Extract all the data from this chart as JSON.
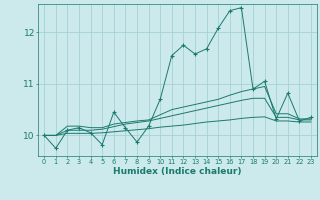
{
  "bg_color": "#cce9ec",
  "grid_color": "#9ecdd2",
  "line_color": "#1a7a6e",
  "xlabel": "Humidex (Indice chaleur)",
  "ylabel_ticks": [
    10,
    11,
    12
  ],
  "xlim": [
    -0.5,
    23.5
  ],
  "ylim": [
    9.6,
    12.55
  ],
  "xticks": [
    0,
    1,
    2,
    3,
    4,
    5,
    6,
    7,
    8,
    9,
    10,
    11,
    12,
    13,
    14,
    15,
    16,
    17,
    18,
    19,
    20,
    21,
    22,
    23
  ],
  "x": [
    0,
    1,
    2,
    3,
    4,
    5,
    6,
    7,
    8,
    9,
    10,
    11,
    12,
    13,
    14,
    15,
    16,
    17,
    18,
    19,
    20,
    21,
    22,
    23
  ],
  "line1": [
    10.0,
    9.75,
    10.1,
    10.15,
    10.05,
    9.82,
    10.45,
    10.15,
    9.87,
    10.18,
    10.7,
    11.55,
    11.75,
    11.58,
    11.68,
    12.08,
    12.42,
    12.48,
    10.9,
    11.05,
    10.32,
    10.82,
    10.28,
    10.35
  ],
  "line2": [
    10.0,
    10.0,
    10.18,
    10.18,
    10.15,
    10.15,
    10.22,
    10.25,
    10.28,
    10.3,
    10.4,
    10.5,
    10.55,
    10.6,
    10.65,
    10.7,
    10.78,
    10.85,
    10.9,
    10.95,
    10.42,
    10.42,
    10.32,
    10.32
  ],
  "line3": [
    10.0,
    10.0,
    10.1,
    10.1,
    10.1,
    10.12,
    10.17,
    10.22,
    10.25,
    10.28,
    10.33,
    10.38,
    10.43,
    10.48,
    10.53,
    10.58,
    10.63,
    10.68,
    10.72,
    10.72,
    10.35,
    10.35,
    10.3,
    10.3
  ],
  "line4": [
    10.0,
    10.0,
    10.04,
    10.04,
    10.04,
    10.05,
    10.07,
    10.09,
    10.11,
    10.13,
    10.16,
    10.18,
    10.2,
    10.23,
    10.26,
    10.28,
    10.3,
    10.33,
    10.35,
    10.36,
    10.28,
    10.28,
    10.26,
    10.26
  ]
}
